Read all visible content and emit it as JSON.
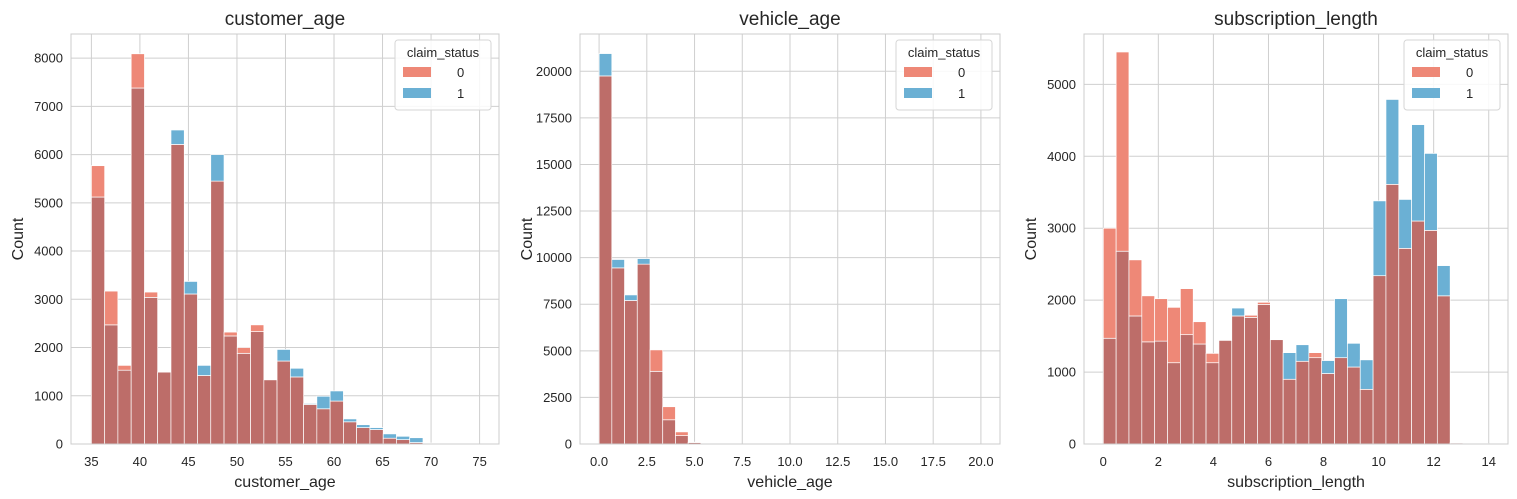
{
  "chart_data": [
    {
      "type": "histogram",
      "title": "customer_age",
      "xlabel": "customer_age",
      "ylabel": "Count",
      "xlim": [
        32.9,
        77
      ],
      "ylim": [
        0,
        8500
      ],
      "xticks": [
        35,
        40,
        45,
        50,
        55,
        60,
        65,
        70,
        75
      ],
      "xtick_labels": [
        "35",
        "40",
        "45",
        "50",
        "55",
        "60",
        "65",
        "70",
        "75"
      ],
      "yticks": [
        0,
        1000,
        2000,
        3000,
        4000,
        5000,
        6000,
        7000,
        8000
      ],
      "ytick_labels": [
        "0",
        "1000",
        "2000",
        "3000",
        "4000",
        "5000",
        "6000",
        "7000",
        "8000"
      ],
      "grid": true,
      "bin_edges": [
        35,
        36.37,
        37.73,
        39.1,
        40.47,
        41.83,
        43.2,
        44.57,
        45.93,
        47.3,
        48.67,
        50.03,
        51.4,
        52.77,
        54.13,
        55.5,
        56.87,
        58.23,
        59.6,
        60.97,
        62.33,
        63.7,
        65.07,
        66.43,
        67.8,
        69.17,
        70.53,
        71.9,
        73.27,
        74.63,
        76
      ],
      "legend": {
        "title": "claim_status",
        "entries": [
          "0",
          "1"
        ],
        "position": "upper right"
      },
      "series": [
        {
          "name": "0",
          "color": "#e8604a",
          "values": [
            5770,
            3170,
            1630,
            8090,
            3150,
            1490,
            6210,
            3110,
            1420,
            5450,
            2320,
            2000,
            2470,
            1330,
            1720,
            1390,
            820,
            730,
            890,
            460,
            340,
            300,
            120,
            90,
            30,
            10,
            5,
            3,
            2,
            1
          ]
        },
        {
          "name": "1",
          "color": "#3a95c5",
          "values": [
            5120,
            2470,
            1530,
            7380,
            3040,
            1490,
            6510,
            3370,
            1630,
            6000,
            2240,
            1880,
            2330,
            1330,
            1960,
            1570,
            840,
            990,
            1100,
            520,
            400,
            340,
            210,
            160,
            130,
            20,
            10,
            5,
            3,
            2
          ]
        }
      ]
    },
    {
      "type": "histogram",
      "title": "vehicle_age",
      "xlabel": "vehicle_age",
      "ylabel": "Count",
      "xlim": [
        -1,
        21
      ],
      "ylim": [
        0,
        22000
      ],
      "xticks": [
        0,
        2.5,
        5,
        7.5,
        10,
        12.5,
        15,
        17.5,
        20
      ],
      "xtick_labels": [
        "0.0",
        "2.5",
        "5.0",
        "7.5",
        "10.0",
        "12.5",
        "15.0",
        "17.5",
        "20.0"
      ],
      "yticks": [
        0,
        2500,
        5000,
        7500,
        10000,
        12500,
        15000,
        17500,
        20000
      ],
      "ytick_labels": [
        "0",
        "2500",
        "5000",
        "7500",
        "10000",
        "12500",
        "15000",
        "17500",
        "20000"
      ],
      "grid": true,
      "bin_edges": [
        0,
        0.667,
        1.333,
        2,
        2.667,
        3.333,
        4,
        4.667,
        5.333,
        6,
        6.667,
        7.333,
        8,
        8.667,
        9.333,
        10,
        10.667,
        11.333,
        12,
        12.667,
        13.333,
        14,
        14.667,
        15.333,
        16,
        16.667,
        17.333,
        18,
        18.667,
        19.333,
        20
      ],
      "legend": {
        "title": "claim_status",
        "entries": [
          "0",
          "1"
        ],
        "position": "upper right"
      },
      "series": [
        {
          "name": "0",
          "color": "#e8604a",
          "values": [
            19750,
            9450,
            7700,
            9650,
            5050,
            2000,
            650,
            100,
            20,
            10,
            5,
            2,
            1,
            1,
            0,
            0,
            0,
            0,
            0,
            0,
            0,
            0,
            0,
            0,
            0,
            0,
            0,
            0,
            0,
            1
          ]
        },
        {
          "name": "1",
          "color": "#3a95c5",
          "values": [
            20950,
            9900,
            8000,
            9950,
            3900,
            1300,
            450,
            80,
            15,
            8,
            4,
            2,
            1,
            0,
            0,
            0,
            0,
            0,
            0,
            0,
            0,
            0,
            0,
            0,
            0,
            0,
            0,
            0,
            0,
            0
          ]
        }
      ]
    },
    {
      "type": "histogram",
      "title": "subscription_length",
      "xlabel": "subscription_length",
      "ylabel": "Count",
      "xlim": [
        -0.7,
        14.7
      ],
      "ylim": [
        0,
        5700
      ],
      "xticks": [
        0,
        2,
        4,
        6,
        8,
        10,
        12,
        14
      ],
      "xtick_labels": [
        "0",
        "2",
        "4",
        "6",
        "8",
        "10",
        "12",
        "14"
      ],
      "yticks": [
        0,
        1000,
        2000,
        3000,
        4000,
        5000
      ],
      "ytick_labels": [
        "0",
        "1000",
        "2000",
        "3000",
        "4000",
        "5000"
      ],
      "grid": true,
      "bin_edges": [
        0,
        0.467,
        0.933,
        1.4,
        1.867,
        2.333,
        2.8,
        3.267,
        3.733,
        4.2,
        4.667,
        5.133,
        5.6,
        6.067,
        6.533,
        7,
        7.467,
        7.933,
        8.4,
        8.867,
        9.333,
        9.8,
        10.267,
        10.733,
        11.2,
        11.667,
        12.133,
        12.6,
        13.067,
        13.533,
        14
      ],
      "legend": {
        "title": "claim_status",
        "entries": [
          "0",
          "1"
        ],
        "position": "upper right"
      },
      "series": [
        {
          "name": "0",
          "color": "#e8604a",
          "values": [
            3000,
            5450,
            2560,
            2060,
            2020,
            1900,
            2160,
            1700,
            1260,
            1440,
            1780,
            1790,
            1970,
            1450,
            900,
            1150,
            1270,
            980,
            1200,
            1070,
            760,
            2340,
            3610,
            2720,
            3100,
            2970,
            2060,
            20,
            10,
            5
          ]
        },
        {
          "name": "1",
          "color": "#3a95c5",
          "values": [
            1470,
            2680,
            1780,
            1420,
            1430,
            1130,
            1520,
            1390,
            1130,
            1440,
            1890,
            1760,
            1940,
            1450,
            1270,
            1380,
            1200,
            1160,
            2020,
            1400,
            1170,
            3380,
            4790,
            3400,
            4440,
            4040,
            2480,
            15,
            8,
            4
          ]
        }
      ]
    }
  ]
}
